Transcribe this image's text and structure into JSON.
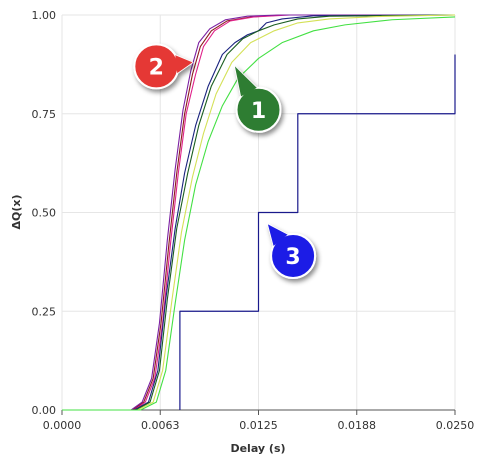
{
  "chart_data": {
    "type": "line",
    "title": "",
    "xlabel": "Delay (s)",
    "ylabel": "ΔQ(x)",
    "xlim": [
      0,
      0.025
    ],
    "ylim": [
      0,
      1
    ],
    "x_ticks": [
      "0.0000",
      "0.0063",
      "0.0125",
      "0.0188",
      "0.0250"
    ],
    "y_ticks": [
      "0.00",
      "0.25",
      "0.50",
      "0.75",
      "1.00"
    ],
    "grid": true,
    "legend": "none",
    "series": [
      {
        "color": "#8b1c1c",
        "points": [
          [
            0,
            0
          ],
          [
            0.0045,
            0
          ],
          [
            0.0052,
            0.02
          ],
          [
            0.0058,
            0.08
          ],
          [
            0.0063,
            0.22
          ],
          [
            0.0068,
            0.42
          ],
          [
            0.0073,
            0.6
          ],
          [
            0.0078,
            0.75
          ],
          [
            0.0083,
            0.85
          ],
          [
            0.0088,
            0.92
          ],
          [
            0.0095,
            0.96
          ],
          [
            0.0105,
            0.985
          ],
          [
            0.012,
            0.995
          ],
          [
            0.014,
            1
          ],
          [
            0.025,
            1
          ]
        ]
      },
      {
        "color": "#e0218a",
        "points": [
          [
            0,
            0
          ],
          [
            0.0046,
            0
          ],
          [
            0.0053,
            0.02
          ],
          [
            0.0059,
            0.08
          ],
          [
            0.0064,
            0.22
          ],
          [
            0.0069,
            0.42
          ],
          [
            0.0074,
            0.6
          ],
          [
            0.0079,
            0.75
          ],
          [
            0.0085,
            0.85
          ],
          [
            0.009,
            0.92
          ],
          [
            0.0097,
            0.96
          ],
          [
            0.0107,
            0.985
          ],
          [
            0.0122,
            0.995
          ],
          [
            0.0145,
            1
          ],
          [
            0.025,
            1
          ]
        ]
      },
      {
        "color": "#7b1fa2",
        "points": [
          [
            0,
            0
          ],
          [
            0.0044,
            0
          ],
          [
            0.0051,
            0.02
          ],
          [
            0.0057,
            0.08
          ],
          [
            0.0062,
            0.22
          ],
          [
            0.0067,
            0.43
          ],
          [
            0.0072,
            0.61
          ],
          [
            0.0077,
            0.76
          ],
          [
            0.0082,
            0.86
          ],
          [
            0.0087,
            0.93
          ],
          [
            0.0094,
            0.965
          ],
          [
            0.0104,
            0.988
          ],
          [
            0.0118,
            0.997
          ],
          [
            0.0138,
            1
          ],
          [
            0.025,
            1
          ]
        ]
      },
      {
        "color": "#1a237e",
        "points": [
          [
            0,
            0
          ],
          [
            0.0046,
            0
          ],
          [
            0.0055,
            0.02
          ],
          [
            0.0061,
            0.1
          ],
          [
            0.0066,
            0.28
          ],
          [
            0.0072,
            0.46
          ],
          [
            0.0078,
            0.6
          ],
          [
            0.0085,
            0.72
          ],
          [
            0.0093,
            0.82
          ],
          [
            0.0102,
            0.9
          ],
          [
            0.011,
            0.93
          ],
          [
            0.0118,
            0.95
          ],
          [
            0.0125,
            0.96
          ],
          [
            0.013,
            0.98
          ],
          [
            0.014,
            0.99
          ],
          [
            0.016,
            0.998
          ],
          [
            0.025,
            1
          ]
        ]
      },
      {
        "color": "#1b5e20",
        "points": [
          [
            0,
            0
          ],
          [
            0.0047,
            0
          ],
          [
            0.0056,
            0.02
          ],
          [
            0.0062,
            0.1
          ],
          [
            0.0067,
            0.28
          ],
          [
            0.0073,
            0.46
          ],
          [
            0.008,
            0.6
          ],
          [
            0.0087,
            0.72
          ],
          [
            0.0095,
            0.82
          ],
          [
            0.0105,
            0.9
          ],
          [
            0.0115,
            0.94
          ],
          [
            0.0125,
            0.96
          ],
          [
            0.0135,
            0.975
          ],
          [
            0.015,
            0.99
          ],
          [
            0.017,
            0.997
          ],
          [
            0.025,
            1
          ]
        ]
      },
      {
        "color": "#d4e157",
        "points": [
          [
            0,
            0
          ],
          [
            0.0048,
            0
          ],
          [
            0.0058,
            0.02
          ],
          [
            0.0064,
            0.1
          ],
          [
            0.007,
            0.28
          ],
          [
            0.0076,
            0.45
          ],
          [
            0.0083,
            0.59
          ],
          [
            0.009,
            0.7
          ],
          [
            0.0098,
            0.8
          ],
          [
            0.0108,
            0.88
          ],
          [
            0.012,
            0.93
          ],
          [
            0.0135,
            0.96
          ],
          [
            0.015,
            0.98
          ],
          [
            0.017,
            0.99
          ],
          [
            0.02,
            0.996
          ],
          [
            0.025,
            1
          ]
        ]
      },
      {
        "color": "#43e043",
        "points": [
          [
            0,
            0
          ],
          [
            0.005,
            0
          ],
          [
            0.006,
            0.02
          ],
          [
            0.0066,
            0.1
          ],
          [
            0.0072,
            0.27
          ],
          [
            0.0078,
            0.43
          ],
          [
            0.0085,
            0.57
          ],
          [
            0.0093,
            0.68
          ],
          [
            0.0102,
            0.77
          ],
          [
            0.0112,
            0.84
          ],
          [
            0.0125,
            0.89
          ],
          [
            0.014,
            0.93
          ],
          [
            0.016,
            0.96
          ],
          [
            0.018,
            0.975
          ],
          [
            0.021,
            0.988
          ],
          [
            0.025,
            0.995
          ]
        ]
      },
      {
        "color": "#1a1a8c",
        "step": true,
        "points": [
          [
            0.0075,
            0
          ],
          [
            0.0075,
            0.25
          ],
          [
            0.0125,
            0.25
          ],
          [
            0.0125,
            0.5
          ],
          [
            0.015,
            0.5
          ],
          [
            0.015,
            0.75
          ],
          [
            0.025,
            0.75
          ],
          [
            0.025,
            0.9
          ]
        ]
      }
    ],
    "annotations": [
      {
        "text": "1",
        "color": "#2e7d32",
        "target": [
          0.011,
          0.87
        ],
        "center": [
          0.0125,
          0.76
        ]
      },
      {
        "text": "2",
        "color": "#e53935",
        "target": [
          0.0083,
          0.88
        ],
        "center": [
          0.006,
          0.87
        ]
      },
      {
        "text": "3",
        "color": "#1e1ee6",
        "target": [
          0.0131,
          0.47
        ],
        "center": [
          0.0147,
          0.39
        ]
      }
    ]
  }
}
